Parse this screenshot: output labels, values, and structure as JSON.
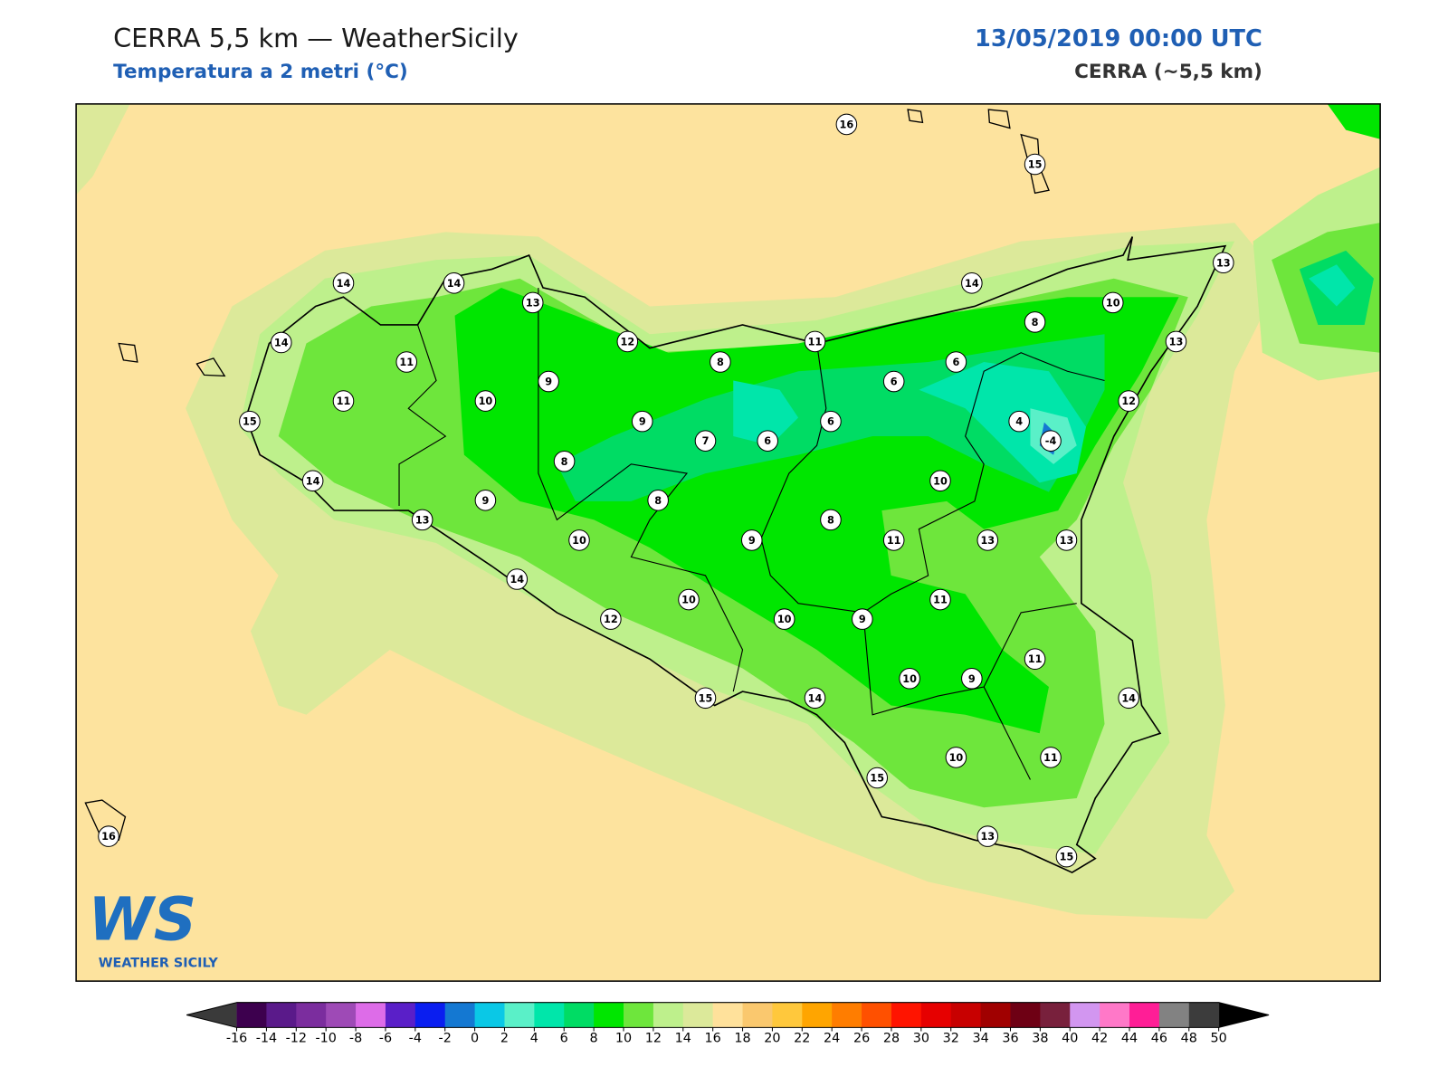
{
  "header": {
    "title": "CERRA 5,5 km — WeatherSicily",
    "subtitle": "Temperatura a 2 metri (°C)",
    "datetime": "13/05/2019 00:00 UTC",
    "model": "CERRA (~5,5 km)"
  },
  "map": {
    "stations": [
      16,
      15,
      14,
      14,
      13,
      14,
      13,
      10,
      14,
      11,
      12,
      11,
      8,
      13,
      9,
      8,
      6,
      6,
      11,
      10,
      12,
      15,
      9,
      6,
      4,
      -4,
      7,
      6,
      8,
      14,
      10,
      9,
      8,
      13,
      8,
      10,
      9,
      11,
      13,
      13,
      14,
      10,
      11,
      12,
      10,
      9,
      11,
      10,
      9,
      15,
      14,
      14,
      10,
      11,
      15,
      16,
      13,
      15
    ]
  },
  "colorbar": {
    "ticks": [
      -16,
      -14,
      -12,
      -10,
      -8,
      -6,
      -4,
      -2,
      0,
      2,
      4,
      6,
      8,
      10,
      12,
      14,
      16,
      18,
      20,
      22,
      24,
      26,
      28,
      30,
      32,
      34,
      36,
      38,
      40,
      42,
      44,
      46,
      48,
      50
    ],
    "colors": [
      "#3d004e",
      "#5a1a8a",
      "#7b2d9e",
      "#9e4ab6",
      "#dd6ce8",
      "#5a1fc8",
      "#0a1ef0",
      "#1478d2",
      "#0ac8e6",
      "#5af0c8",
      "#00e6aa",
      "#00dc64",
      "#00e600",
      "#6ee63c",
      "#bef08c",
      "#dce99a",
      "#ffe19b",
      "#fac86e",
      "#ffc83c",
      "#ffa500",
      "#ff7d00",
      "#ff5000",
      "#ff1400",
      "#e60000",
      "#c80000",
      "#a00000",
      "#6e0014",
      "#78203c",
      "#d296f0",
      "#ff78c8",
      "#ff1e96",
      "#828282",
      "#3c3c3c"
    ],
    "under_color": "#3a3a3a",
    "over_color": "#000000"
  },
  "logo": {
    "mark": "WS",
    "text": "WEATHER SICILY"
  }
}
